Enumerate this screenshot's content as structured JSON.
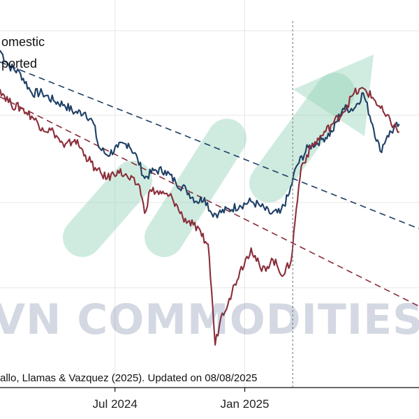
{
  "chart_data": {
    "type": "line",
    "x_ticks": [
      {
        "date": "2024-07-01",
        "label": "Jul 2024"
      },
      {
        "date": "2025-01-01",
        "label": "Jan 2025"
      }
    ],
    "xlim": [
      "2024-01-20",
      "2025-09-05"
    ],
    "ylim": [
      0,
      100
    ],
    "grid": true,
    "legend_position": "top-left",
    "vline_date": "2025-03-10",
    "source_note": "allo, Llamas & Vazquez (2025). Updated on 08/08/2025",
    "series": [
      {
        "name": "omestic",
        "color": "#1e3f66",
        "points": [
          [
            "2024-01-20",
            87
          ],
          [
            "2024-02-02",
            83
          ],
          [
            "2024-02-18",
            81
          ],
          [
            "2024-03-05",
            76
          ],
          [
            "2024-03-20",
            76
          ],
          [
            "2024-04-05",
            74
          ],
          [
            "2024-04-20",
            73
          ],
          [
            "2024-05-05",
            71
          ],
          [
            "2024-05-20",
            71
          ],
          [
            "2024-06-01",
            68
          ],
          [
            "2024-06-08",
            62
          ],
          [
            "2024-06-20",
            60
          ],
          [
            "2024-07-05",
            62
          ],
          [
            "2024-07-20",
            63
          ],
          [
            "2024-08-02",
            59
          ],
          [
            "2024-08-12",
            54
          ],
          [
            "2024-08-25",
            56
          ],
          [
            "2024-09-10",
            56
          ],
          [
            "2024-09-25",
            53
          ],
          [
            "2024-10-10",
            51
          ],
          [
            "2024-10-25",
            48
          ],
          [
            "2024-11-05",
            49
          ],
          [
            "2024-11-15",
            45
          ],
          [
            "2024-11-25",
            45
          ],
          [
            "2024-12-10",
            46
          ],
          [
            "2024-12-25",
            47
          ],
          [
            "2025-01-10",
            48
          ],
          [
            "2025-01-22",
            47
          ],
          [
            "2025-02-05",
            45
          ],
          [
            "2025-02-20",
            45
          ],
          [
            "2025-03-05",
            50
          ],
          [
            "2025-03-15",
            57
          ],
          [
            "2025-04-01",
            62
          ],
          [
            "2025-04-20",
            64
          ],
          [
            "2025-05-05",
            66
          ],
          [
            "2025-05-20",
            72
          ],
          [
            "2025-06-05",
            72
          ],
          [
            "2025-06-18",
            76
          ],
          [
            "2025-07-01",
            68
          ],
          [
            "2025-07-12",
            61
          ],
          [
            "2025-07-22",
            65
          ],
          [
            "2025-08-08",
            68
          ]
        ]
      },
      {
        "name": "ported",
        "color": "#8b2e3a",
        "points": [
          [
            "2024-01-20",
            77
          ],
          [
            "2024-02-05",
            73
          ],
          [
            "2024-02-20",
            72
          ],
          [
            "2024-03-05",
            70
          ],
          [
            "2024-03-20",
            67
          ],
          [
            "2024-04-05",
            66
          ],
          [
            "2024-04-20",
            62
          ],
          [
            "2024-05-05",
            64
          ],
          [
            "2024-05-20",
            60
          ],
          [
            "2024-06-05",
            56
          ],
          [
            "2024-06-20",
            54
          ],
          [
            "2024-07-05",
            56
          ],
          [
            "2024-07-20",
            54
          ],
          [
            "2024-08-05",
            52
          ],
          [
            "2024-08-12",
            45
          ],
          [
            "2024-08-20",
            51
          ],
          [
            "2024-09-05",
            50
          ],
          [
            "2024-09-20",
            49
          ],
          [
            "2024-10-05",
            44
          ],
          [
            "2024-10-20",
            42
          ],
          [
            "2024-11-01",
            39
          ],
          [
            "2024-11-10",
            37
          ],
          [
            "2024-11-15",
            25
          ],
          [
            "2024-11-20",
            11
          ],
          [
            "2024-11-28",
            18
          ],
          [
            "2024-12-10",
            23
          ],
          [
            "2024-12-25",
            30
          ],
          [
            "2025-01-10",
            36
          ],
          [
            "2025-01-25",
            30
          ],
          [
            "2025-02-10",
            33
          ],
          [
            "2025-02-25",
            29
          ],
          [
            "2025-03-08",
            33
          ],
          [
            "2025-03-15",
            46
          ],
          [
            "2025-03-22",
            57
          ],
          [
            "2025-04-05",
            62
          ],
          [
            "2025-04-20",
            65
          ],
          [
            "2025-05-05",
            68
          ],
          [
            "2025-05-20",
            71
          ],
          [
            "2025-06-05",
            76
          ],
          [
            "2025-06-20",
            77
          ],
          [
            "2025-07-05",
            74
          ],
          [
            "2025-07-20",
            70
          ],
          [
            "2025-08-08",
            66
          ]
        ]
      }
    ],
    "trendlines": [
      {
        "series": "omestic",
        "color": "#1e3f66",
        "start": [
          "2024-01-20",
          84
        ],
        "end": [
          "2025-09-05",
          41
        ]
      },
      {
        "series": "ported",
        "color": "#8b2e3a",
        "start": [
          "2024-01-20",
          75
        ],
        "end": [
          "2025-09-05",
          21
        ]
      }
    ]
  },
  "watermark": {
    "text": "VN COMMODITIES",
    "text_color": "#3a4f80",
    "logo_color": "#8fd1b4"
  }
}
